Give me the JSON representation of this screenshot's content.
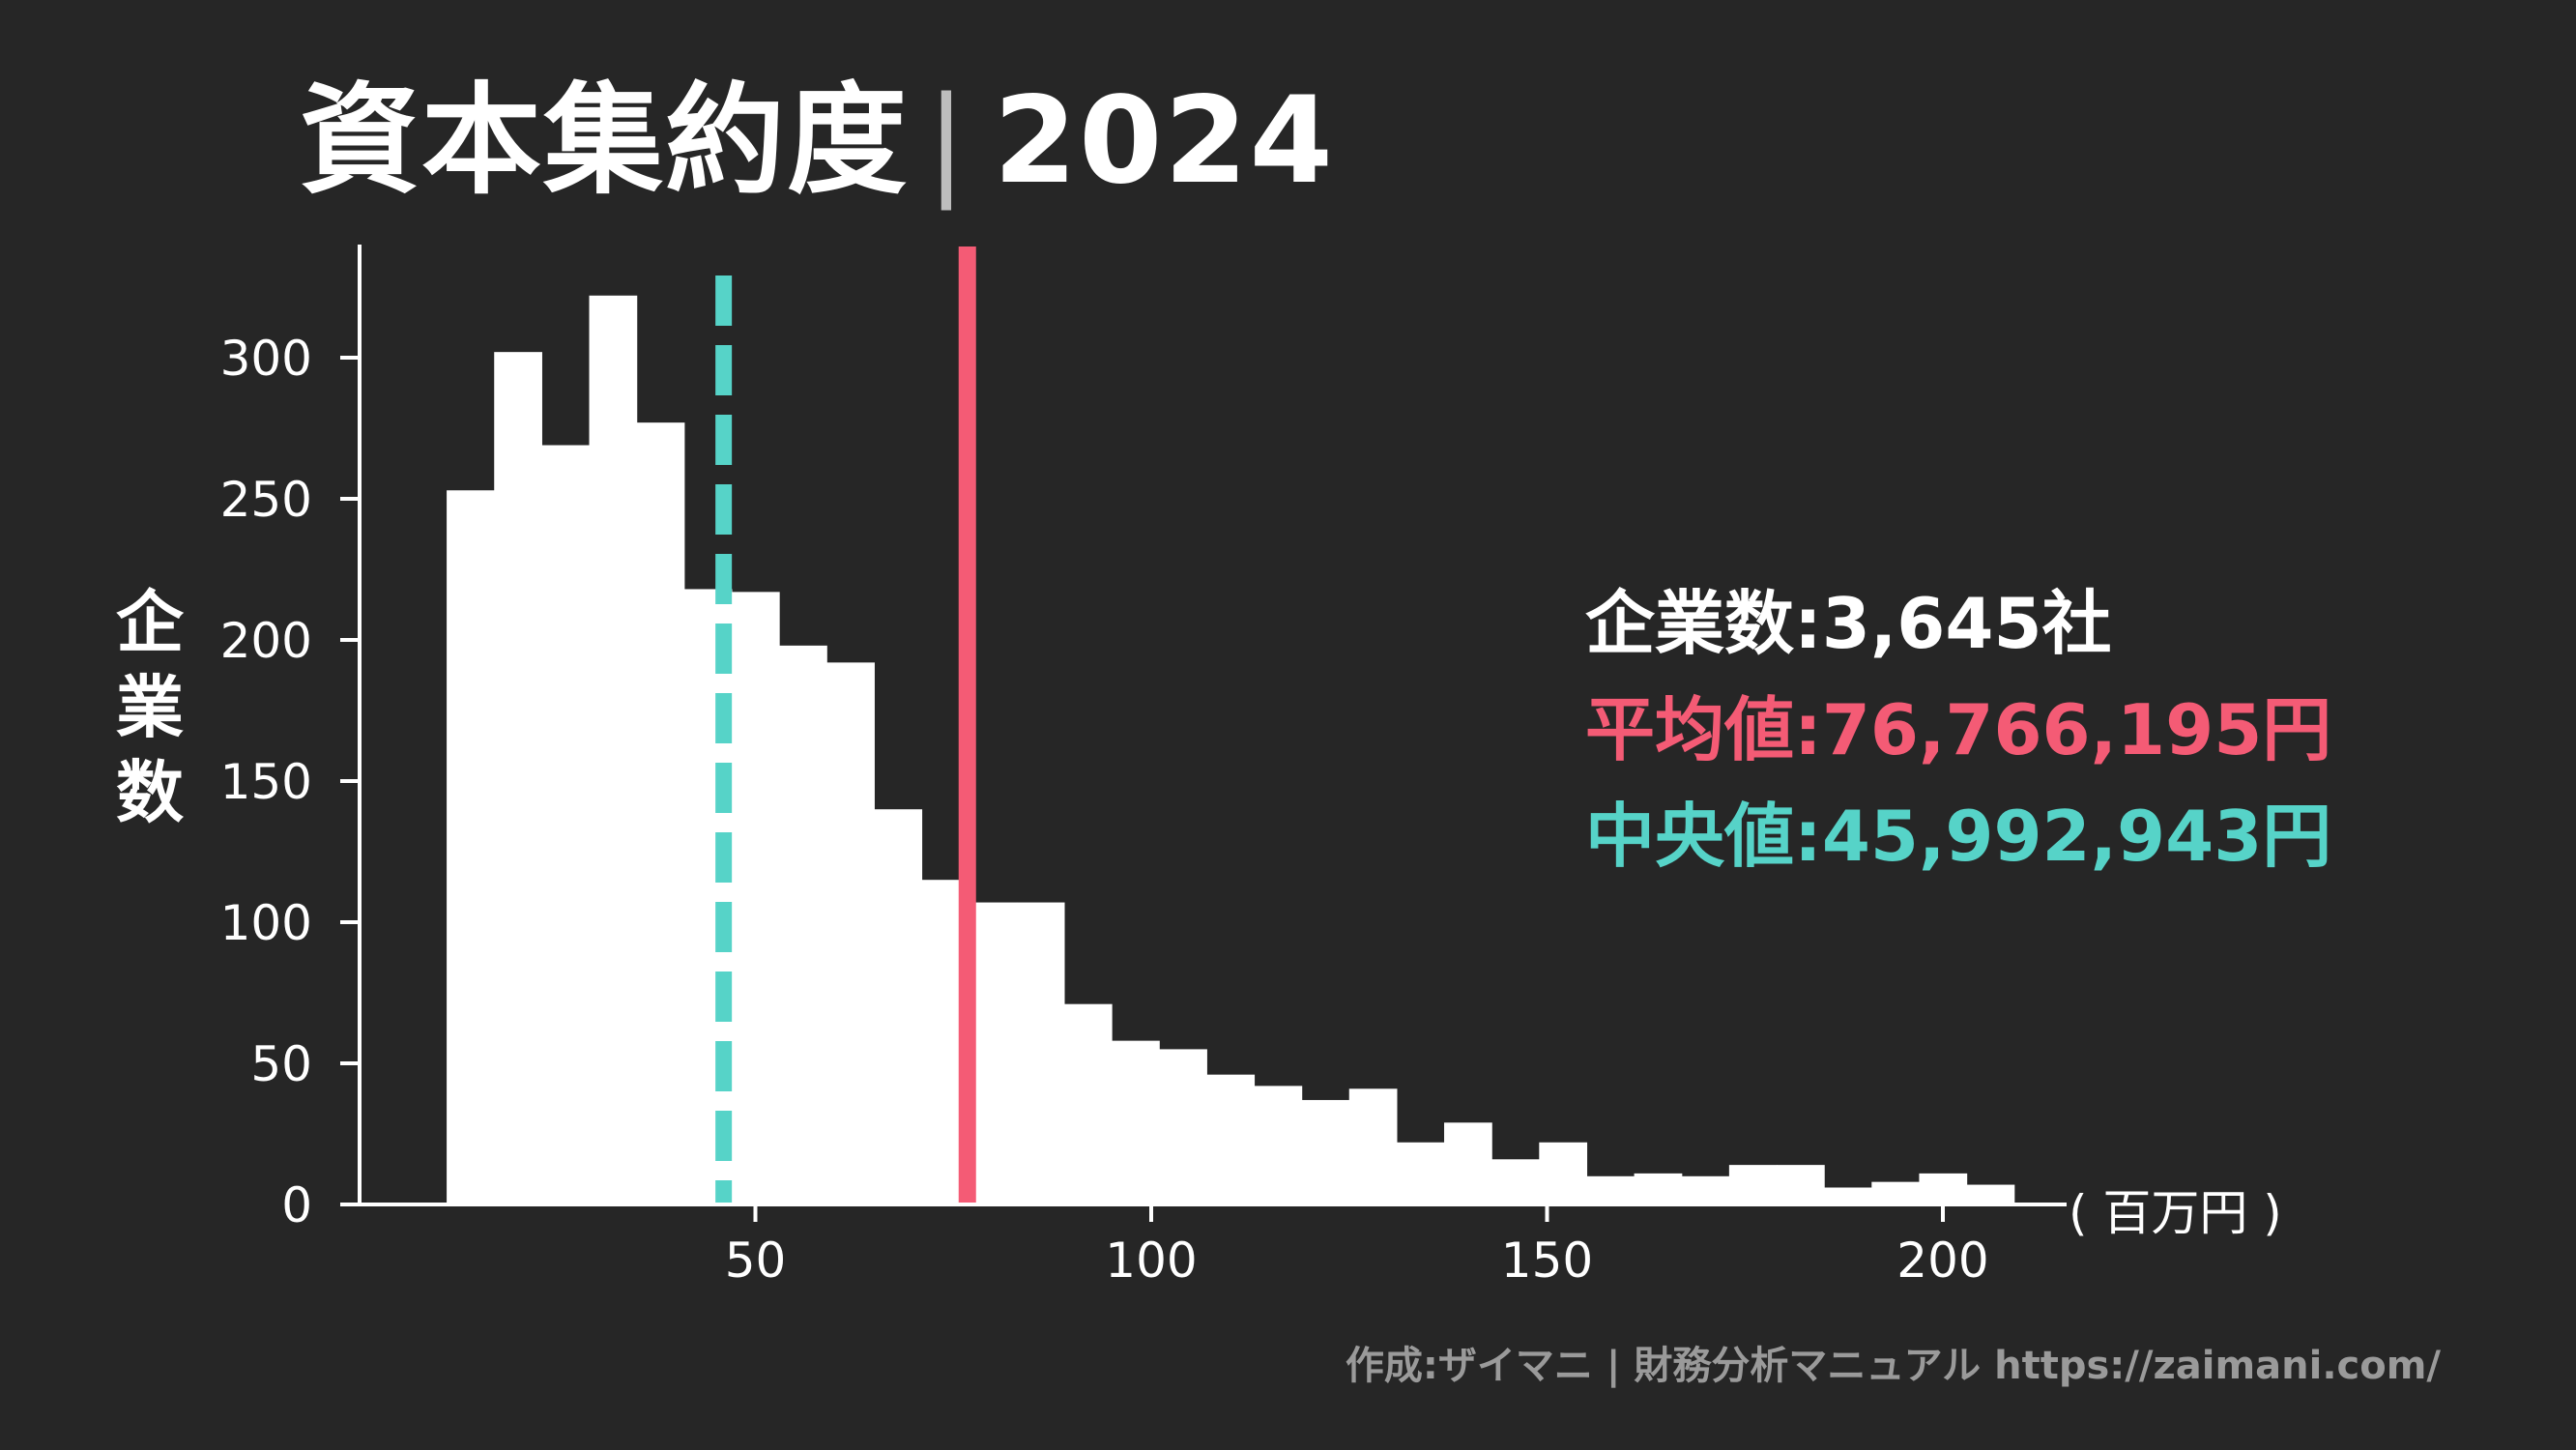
{
  "title": {
    "main": "資本集約度",
    "separator": "|",
    "year": "2024"
  },
  "y_label_chars": [
    "企",
    "業",
    "数"
  ],
  "stats": {
    "count_label": "企業数",
    "count_value": "3,645社",
    "mean_label": "平均値",
    "mean_value": "76,766,195円",
    "median_label": "中央値",
    "median_value": "45,992,943円",
    "colon": ":"
  },
  "x_unit": "( 百万円 )",
  "footer": "作成:ザイマニ | 財務分析マニュアル https://zaimani.com/",
  "colors": {
    "bars": "#ffffff",
    "mean": "#f45b75",
    "median": "#56d3c8",
    "background": "#262626",
    "footer": "#9a9a9a"
  },
  "chart_data": {
    "type": "bar",
    "bin_edges": [
      11,
      17,
      23,
      29,
      35,
      41,
      47,
      53,
      59,
      65,
      71,
      77,
      83,
      89,
      95,
      101,
      107,
      113,
      119,
      125,
      131,
      137,
      143,
      149,
      155,
      161,
      167,
      173,
      179,
      185,
      191,
      197,
      203,
      209
    ],
    "values": [
      253,
      302,
      269,
      322,
      277,
      218,
      217,
      198,
      192,
      140,
      115,
      107,
      107,
      71,
      58,
      55,
      46,
      42,
      37,
      41,
      22,
      29,
      16,
      22,
      10,
      11,
      10,
      14,
      14,
      6,
      8,
      11,
      7
    ],
    "mean": 76.77,
    "median": 45.99,
    "xlim": [
      0,
      225
    ],
    "ylim": [
      0,
      340
    ],
    "x_ticks": [
      50,
      100,
      150,
      200
    ],
    "y_ticks": [
      0,
      50,
      100,
      150,
      200,
      250,
      300
    ]
  }
}
